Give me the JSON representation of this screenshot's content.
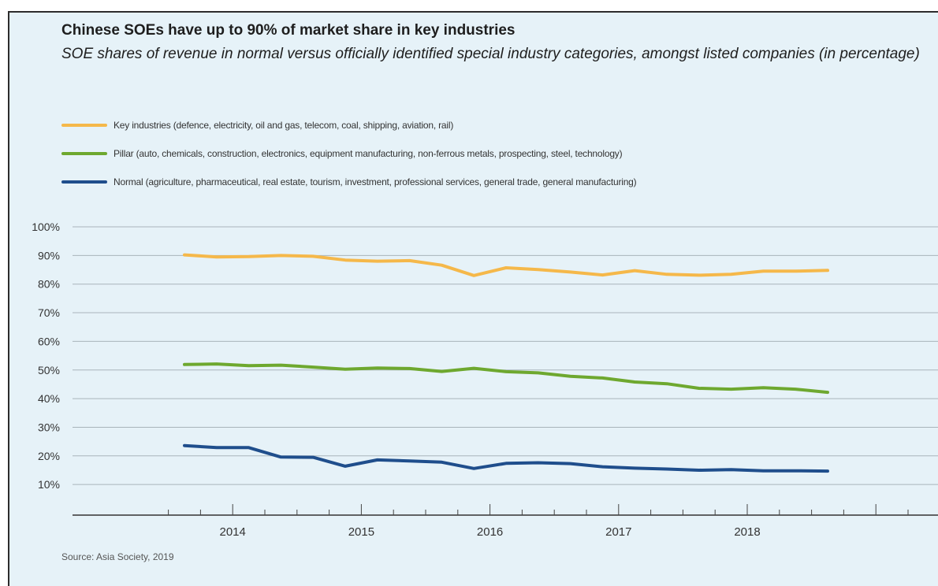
{
  "chart_data": {
    "type": "line",
    "title": "Chinese SOEs have up to 90% of market share in key industries",
    "subtitle": "SOE shares of revenue in normal versus officially identified special industry categories, amongst listed companies (in percentage)",
    "source": "Source: Asia Society, 2019",
    "legend_placement": "top-left",
    "grid": true,
    "x_period": "quarterly",
    "x_quarters": [
      "2013-Q4",
      "2014-Q1",
      "2014-Q2",
      "2014-Q3",
      "2014-Q4",
      "2015-Q1",
      "2015-Q2",
      "2015-Q3",
      "2015-Q4",
      "2016-Q1",
      "2016-Q2",
      "2016-Q3",
      "2016-Q4",
      "2017-Q1",
      "2017-Q2",
      "2017-Q3",
      "2017-Q4",
      "2018-Q1",
      "2018-Q2",
      "2018-Q3",
      "2018-Q4"
    ],
    "x_tick_labels": [
      "2014",
      "2015",
      "2016",
      "2017",
      "2018"
    ],
    "y_tick_labels": [
      "100%",
      "90%",
      "80%",
      "70%",
      "60%",
      "50%",
      "40%",
      "30%",
      "20%",
      "10%"
    ],
    "ylim": [
      0,
      100
    ],
    "series": [
      {
        "name": "Key industries (defence, electricity, oil and gas, telecom, coal, shipping, aviation, rail)",
        "color": "#f5b84a",
        "values": [
          90.2,
          89.5,
          89.6,
          90.0,
          89.7,
          88.4,
          88.0,
          88.2,
          86.6,
          83.0,
          85.7,
          85.1,
          84.2,
          83.2,
          84.7,
          83.4,
          83.1,
          83.4,
          84.5,
          84.5,
          84.8
        ]
      },
      {
        "name": "Pillar (auto, chemicals, construction, electronics, equipment manufacturing, non-ferrous metals, prospecting, steel, technology)",
        "color": "#6ea82f",
        "values": [
          51.9,
          52.1,
          51.5,
          51.7,
          51.0,
          50.3,
          50.7,
          50.5,
          49.5,
          50.6,
          49.4,
          49.0,
          47.8,
          47.2,
          45.8,
          45.2,
          43.6,
          43.3,
          43.8,
          43.3,
          42.2
        ]
      },
      {
        "name": "Normal (agriculture, pharmaceutical, real estate, tourism, investment, professional services, general trade, general manufacturing)",
        "color": "#1f4e8c",
        "values": [
          23.6,
          22.9,
          22.9,
          19.6,
          19.5,
          16.4,
          18.6,
          18.2,
          17.8,
          15.6,
          17.4,
          17.6,
          17.3,
          16.2,
          15.7,
          15.4,
          15.0,
          15.2,
          14.8,
          14.8,
          14.7
        ]
      }
    ]
  }
}
